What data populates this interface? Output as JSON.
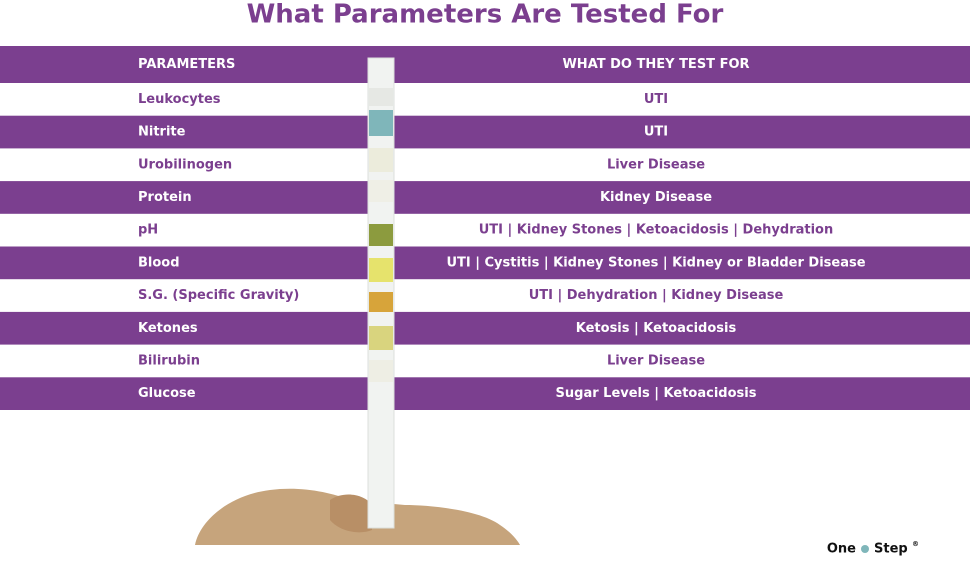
{
  "header": {
    "title": "What Parameters Are Tested For"
  },
  "table": {
    "columns": [
      "PARAMETERS",
      "WHAT DO THEY TEST FOR"
    ],
    "rows": [
      [
        "Leukocytes",
        "UTI"
      ],
      [
        "Nitrite",
        "UTI"
      ],
      [
        "Urobilinogen",
        "Liver Disease"
      ],
      [
        "Protein",
        "Kidney Disease"
      ],
      [
        "pH",
        "UTI | Kidney Stones | Ketoacidosis | Dehydration"
      ],
      [
        "Blood",
        "UTI | Cystitis | Kidney Stones | Kidney or Bladder Disease"
      ],
      [
        "S.G. (Specific Gravity)",
        "UTI | Dehydration | Kidney Disease"
      ],
      [
        "Ketones",
        "Ketosis | Ketoacidosis"
      ],
      [
        "Bilirubin",
        "Liver Disease"
      ],
      [
        "Glucose",
        "Sugar Levels | Ketoacidosis"
      ]
    ]
  },
  "brand": {
    "left": "One",
    "right": "Step",
    "mark": "®"
  }
}
